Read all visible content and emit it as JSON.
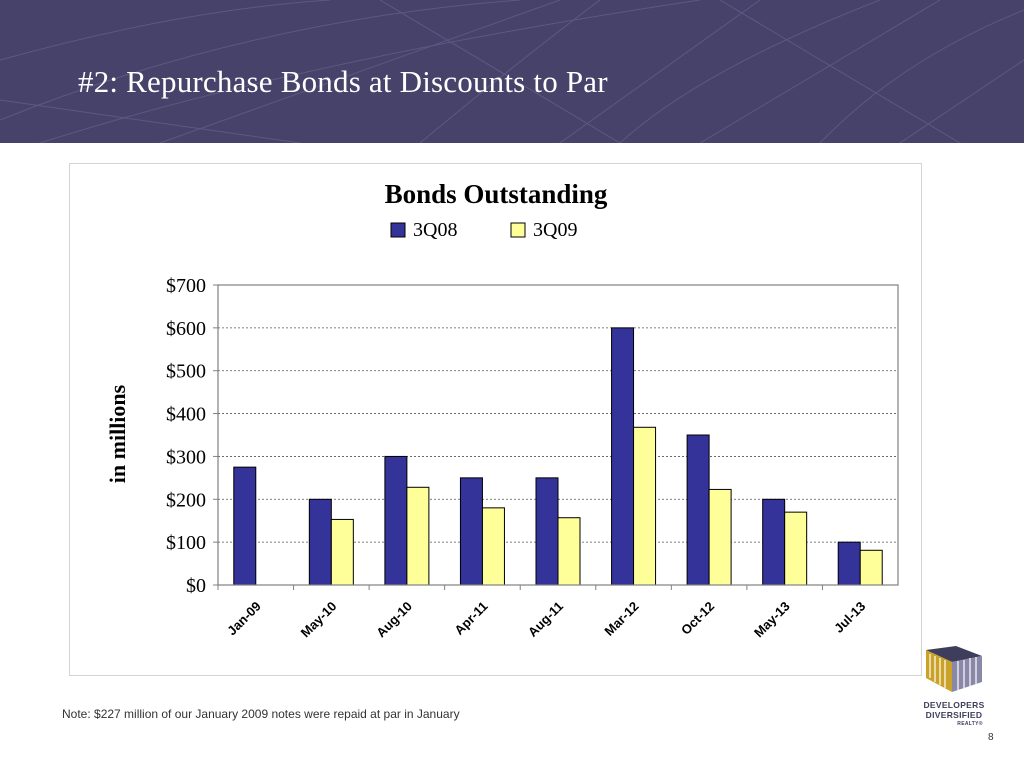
{
  "slide": {
    "title": "#2: Repurchase Bonds at Discounts to Par",
    "note": "Note: $227 million of our January 2009 notes were repaid at par in January",
    "page_number": "8"
  },
  "logo": {
    "line1": "DEVELOPERS",
    "line2": "DIVERSIFIED",
    "line3": "REALTY®"
  },
  "colors": {
    "header_bg": "#46426a",
    "series_3q08": "#333399",
    "series_3q09": "#ffff99"
  },
  "chart_data": {
    "type": "bar",
    "title": "Bonds Outstanding",
    "ylabel": "in millions",
    "xlabel": "",
    "ylim": [
      0,
      700
    ],
    "yticks": [
      0,
      100,
      200,
      300,
      400,
      500,
      600,
      700
    ],
    "ytick_labels": [
      "$0",
      "$100",
      "$200",
      "$300",
      "$400",
      "$500",
      "$600",
      "$700"
    ],
    "grid": true,
    "legend": "top-center",
    "categories": [
      "Jan-09",
      "May-10",
      "Aug-10",
      "Apr-11",
      "Aug-11",
      "Mar-12",
      "Oct-12",
      "May-13",
      "Jul-13"
    ],
    "series": [
      {
        "name": "3Q08",
        "color": "#333399",
        "values": [
          275,
          200,
          300,
          250,
          250,
          600,
          350,
          200,
          100
        ]
      },
      {
        "name": "3Q09",
        "color": "#ffff99",
        "values": [
          0,
          153,
          228,
          180,
          157,
          368,
          223,
          170,
          81
        ]
      }
    ]
  }
}
